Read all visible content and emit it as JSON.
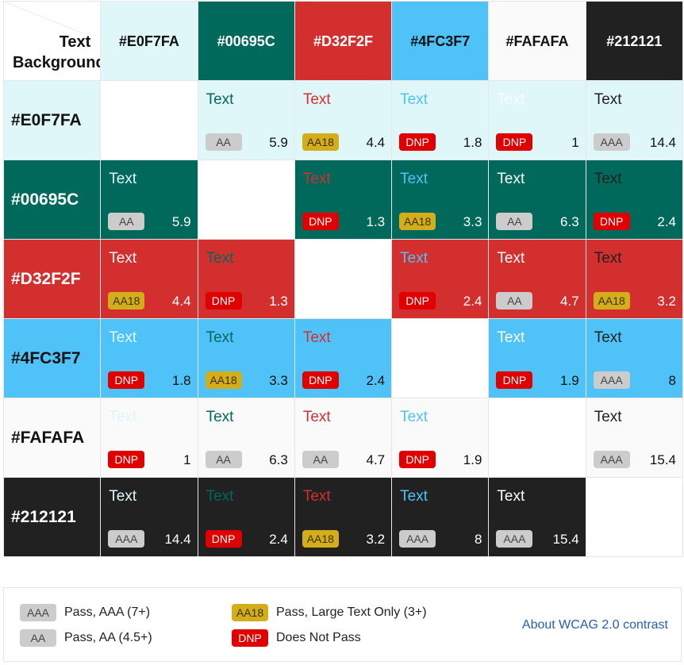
{
  "header": {
    "text_label": "Text",
    "background_label": "Background"
  },
  "colors": [
    {
      "name": "#E0F7FA",
      "hex": "#E0F7FA",
      "label_color": "#111111"
    },
    {
      "name": "#00695C",
      "hex": "#00695C",
      "label_color": "#ffffff"
    },
    {
      "name": "#D32F2F",
      "hex": "#D32F2F",
      "label_color": "#ffffff"
    },
    {
      "name": "#4FC3F7",
      "hex": "#4FC3F7",
      "label_color": "#111111"
    },
    {
      "name": "#FAFAFA",
      "hex": "#FAFAFA",
      "label_color": "#111111"
    },
    {
      "name": "#212121",
      "hex": "#212121",
      "label_color": "#ffffff"
    }
  ],
  "sample_text": "Text",
  "cells": [
    [
      null,
      {
        "rating": "AA",
        "ratio": "5.9"
      },
      {
        "rating": "AA18",
        "ratio": "4.4"
      },
      {
        "rating": "DNP",
        "ratio": "1.8"
      },
      {
        "rating": "DNP",
        "ratio": "1"
      },
      {
        "rating": "AAA",
        "ratio": "14.4"
      }
    ],
    [
      {
        "rating": "AA",
        "ratio": "5.9"
      },
      null,
      {
        "rating": "DNP",
        "ratio": "1.3"
      },
      {
        "rating": "AA18",
        "ratio": "3.3"
      },
      {
        "rating": "AA",
        "ratio": "6.3"
      },
      {
        "rating": "DNP",
        "ratio": "2.4"
      }
    ],
    [
      {
        "rating": "AA18",
        "ratio": "4.4"
      },
      {
        "rating": "DNP",
        "ratio": "1.3"
      },
      null,
      {
        "rating": "DNP",
        "ratio": "2.4"
      },
      {
        "rating": "AA",
        "ratio": "4.7"
      },
      {
        "rating": "AA18",
        "ratio": "3.2"
      }
    ],
    [
      {
        "rating": "DNP",
        "ratio": "1.8"
      },
      {
        "rating": "AA18",
        "ratio": "3.3"
      },
      {
        "rating": "DNP",
        "ratio": "2.4"
      },
      null,
      {
        "rating": "DNP",
        "ratio": "1.9"
      },
      {
        "rating": "AAA",
        "ratio": "8"
      }
    ],
    [
      {
        "rating": "DNP",
        "ratio": "1"
      },
      {
        "rating": "AA",
        "ratio": "6.3"
      },
      {
        "rating": "AA",
        "ratio": "4.7"
      },
      {
        "rating": "DNP",
        "ratio": "1.9"
      },
      null,
      {
        "rating": "AAA",
        "ratio": "15.4"
      }
    ],
    [
      {
        "rating": "AAA",
        "ratio": "14.4"
      },
      {
        "rating": "DNP",
        "ratio": "2.4"
      },
      {
        "rating": "AA18",
        "ratio": "3.2"
      },
      {
        "rating": "AAA",
        "ratio": "8"
      },
      {
        "rating": "AAA",
        "ratio": "15.4"
      },
      null
    ]
  ],
  "legend": {
    "aaa": {
      "badge": "AAA",
      "text": "Pass, AAA (7+)"
    },
    "aa": {
      "badge": "AA",
      "text": "Pass, AA (4.5+)"
    },
    "aa18": {
      "badge": "AA18",
      "text": "Pass, Large Text Only (3+)"
    },
    "dnp": {
      "badge": "DNP",
      "text": "Does Not Pass"
    },
    "about_link": "About WCAG 2.0 contrast"
  }
}
